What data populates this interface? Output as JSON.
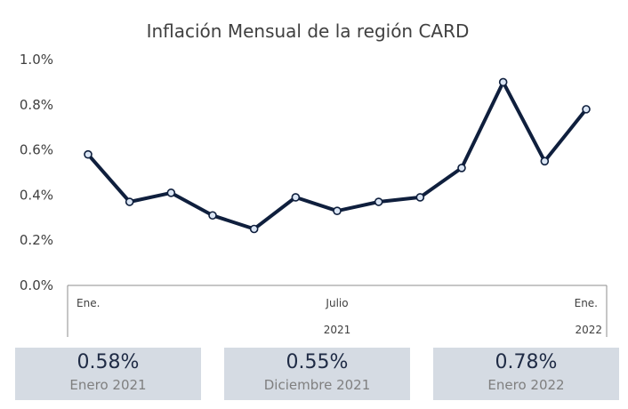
{
  "chart_data": {
    "type": "line",
    "title": "Inflación Mensual de la región CARD",
    "xlabel": "",
    "ylabel": "",
    "ylim": [
      0.0,
      1.0
    ],
    "y_ticks": [
      "0.0%",
      "0.2%",
      "0.4%",
      "0.6%",
      "0.8%",
      "1.0%"
    ],
    "grid": false,
    "x": [
      "2021-01",
      "2021-02",
      "2021-03",
      "2021-04",
      "2021-05",
      "2021-06",
      "2021-07",
      "2021-08",
      "2021-09",
      "2021-10",
      "2021-11",
      "2021-12",
      "2022-01"
    ],
    "x_tick_labels": [
      {
        "index": 0,
        "label": "Ene."
      },
      {
        "index": 6,
        "label": "Julio"
      },
      {
        "index": 12,
        "label": "Ene."
      }
    ],
    "x_group_labels": [
      {
        "center_index": 6,
        "label": "2021"
      },
      {
        "center_index": 12,
        "label": "2022"
      }
    ],
    "series": [
      {
        "values": [
          0.58,
          0.37,
          0.41,
          0.31,
          0.25,
          0.39,
          0.33,
          0.37,
          0.39,
          0.52,
          0.9,
          0.55,
          0.78
        ],
        "color": "#0f1f3d"
      }
    ]
  },
  "summary_cards": [
    {
      "value": "0.58%",
      "label": "Enero 2021"
    },
    {
      "value": "0.55%",
      "label": "Diciembre 2021"
    },
    {
      "value": "0.78%",
      "label": "Enero 2022"
    }
  ]
}
